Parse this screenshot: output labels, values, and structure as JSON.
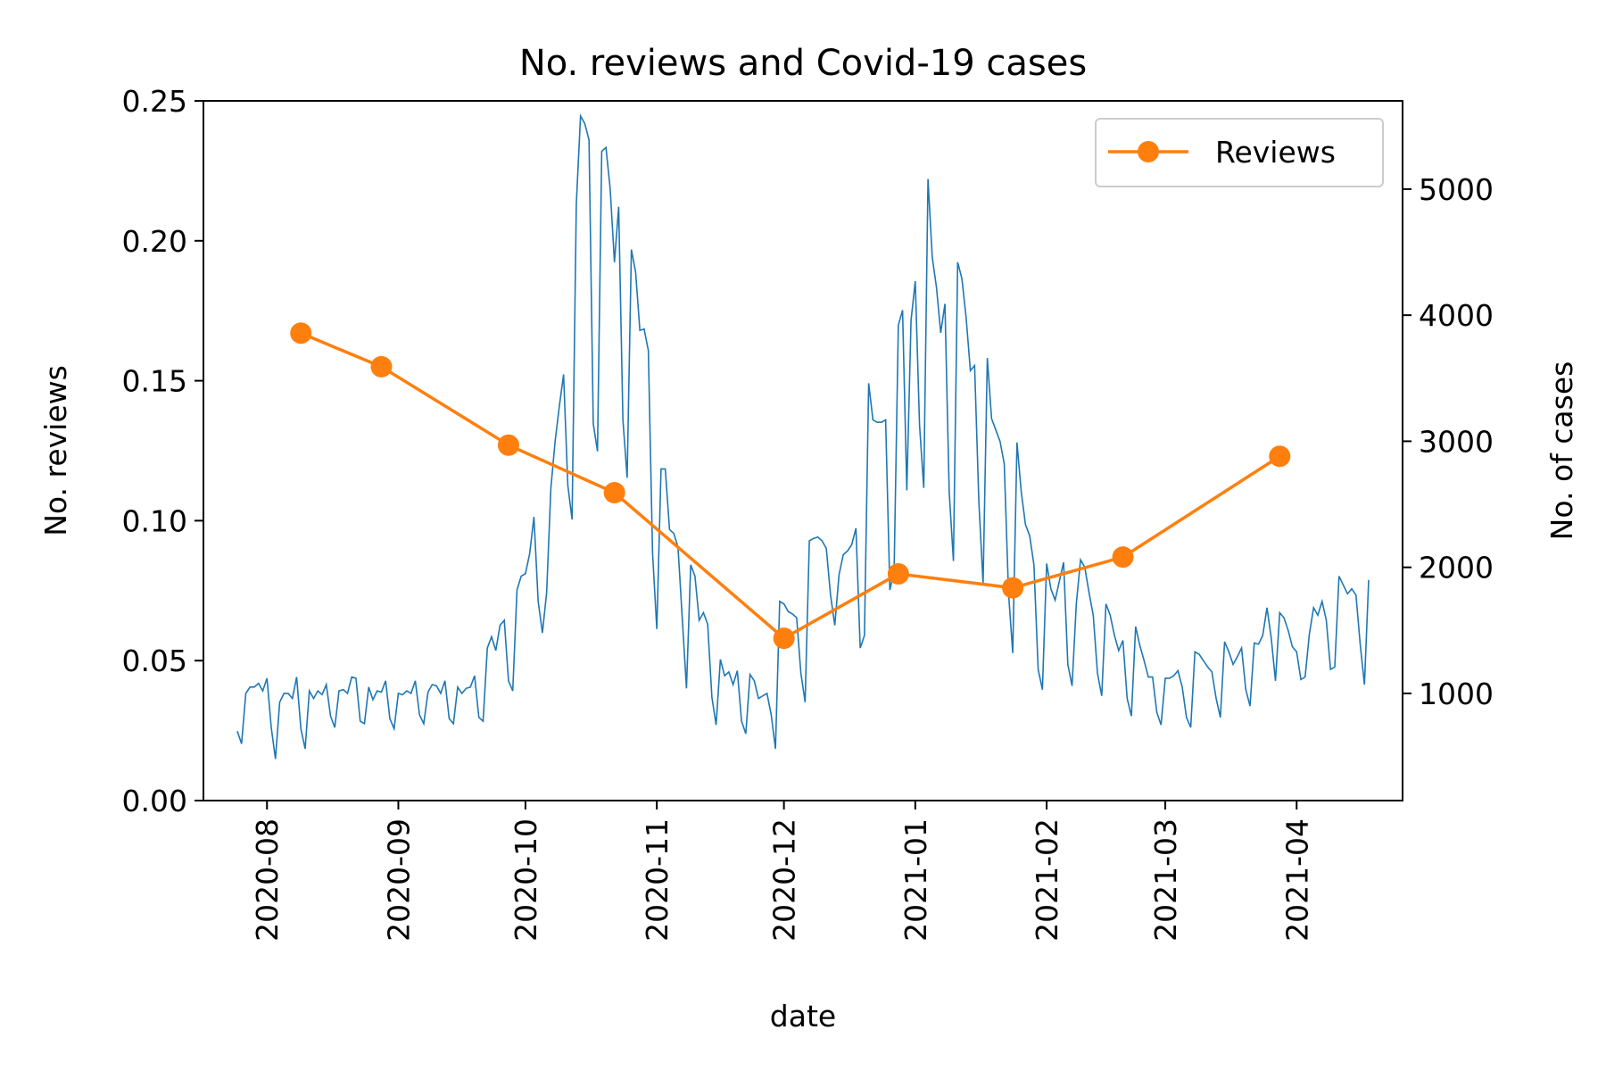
{
  "chart_data": {
    "type": "line",
    "title": "No. reviews and Covid-19 cases",
    "xlabel": "date",
    "ylabel": "No. reviews",
    "y2label": "No. of cases",
    "x_ticks": [
      "2020-08-01",
      "2020-09-01",
      "2020-10-01",
      "2020-11-01",
      "2020-12-01",
      "2021-01-01",
      "2021-02-01",
      "2021-03-01",
      "2021-04-01"
    ],
    "x_tick_labels": [
      "2020-08",
      "2020-09",
      "2020-10",
      "2020-11",
      "2020-12",
      "2021-01",
      "2021-02",
      "2021-03",
      "2021-04"
    ],
    "xlim": [
      "2020-07-17",
      "2021-04-26"
    ],
    "ylim": [
      0,
      0.25
    ],
    "y_ticks": [
      0.0,
      0.05,
      0.1,
      0.15,
      0.2,
      0.25
    ],
    "y_tick_labels": [
      "0.00",
      "0.05",
      "0.10",
      "0.15",
      "0.20",
      "0.25"
    ],
    "y2lim": [
      150,
      5700
    ],
    "y2_ticks": [
      1000,
      2000,
      3000,
      4000,
      5000
    ],
    "y2_tick_labels": [
      "1000",
      "2000",
      "3000",
      "4000",
      "5000"
    ],
    "legend": {
      "position": "top-right",
      "entries": [
        "Reviews"
      ]
    },
    "series": [
      {
        "name": "Reviews",
        "axis": "left",
        "color": "#ff7f0e",
        "marker": "circle",
        "points": [
          {
            "x": "2020-08-09",
            "y": 0.167
          },
          {
            "x": "2020-08-28",
            "y": 0.155
          },
          {
            "x": "2020-09-27",
            "y": 0.127
          },
          {
            "x": "2020-10-22",
            "y": 0.11
          },
          {
            "x": "2020-12-01",
            "y": 0.058
          },
          {
            "x": "2020-12-28",
            "y": 0.081
          },
          {
            "x": "2021-01-24",
            "y": 0.076
          },
          {
            "x": "2021-02-19",
            "y": 0.087
          },
          {
            "x": "2021-03-28",
            "y": 0.123
          }
        ]
      },
      {
        "axis": "right",
        "color": "#1f77b4",
        "start_date": "2020-07-25",
        "daily_values": [
          700,
          600,
          1000,
          1050,
          1050,
          1080,
          1020,
          1120,
          730,
          480,
          930,
          1000,
          1000,
          960,
          1130,
          720,
          560,
          1020,
          960,
          1020,
          990,
          1070,
          820,
          730,
          1020,
          1030,
          1000,
          1130,
          1120,
          780,
          760,
          1050,
          950,
          1020,
          1010,
          1100,
          800,
          720,
          1000,
          990,
          1020,
          1000,
          1100,
          830,
          760,
          1010,
          1070,
          1060,
          1000,
          1100,
          800,
          760,
          1050,
          1000,
          1040,
          1050,
          1140,
          810,
          780,
          1360,
          1450,
          1340,
          1540,
          1580,
          1100,
          1020,
          1820,
          1930,
          1950,
          2110,
          2400,
          1730,
          1480,
          1800,
          2630,
          3000,
          3280,
          3530,
          2650,
          2380,
          4880,
          5580,
          5520,
          5390,
          3140,
          2920,
          5300,
          5330,
          5000,
          4420,
          4860,
          3170,
          2710,
          4520,
          4340,
          3880,
          3890,
          3720,
          2110,
          1510,
          2780,
          2780,
          2300,
          2270,
          2160,
          1600,
          1040,
          2020,
          1930,
          1580,
          1640,
          1550,
          970,
          750,
          1270,
          1140,
          1170,
          1070,
          1180,
          780,
          680,
          1150,
          1100,
          960,
          980,
          1000,
          830,
          560,
          1730,
          1710,
          1650,
          1630,
          1600,
          1160,
          930,
          2210,
          2230,
          2240,
          2210,
          2150,
          1780,
          1540,
          1940,
          2100,
          2130,
          2180,
          2310,
          1360,
          1460,
          3460,
          3170,
          3150,
          3150,
          3170,
          1820,
          1970,
          3920,
          4040,
          2610,
          3960,
          4270,
          3130,
          2630,
          5080,
          4460,
          4220,
          3860,
          4090,
          2600,
          2050,
          4420,
          4290,
          3980,
          3560,
          3600,
          2520,
          1870,
          3660,
          3180,
          3090,
          3000,
          2820,
          1800,
          1320,
          2990,
          2600,
          2340,
          2250,
          2020,
          1190,
          1030,
          2030,
          1830,
          1740,
          1890,
          2040,
          1230,
          1060,
          1710,
          2060,
          2000,
          1800,
          1620,
          1160,
          980,
          1710,
          1620,
          1460,
          1340,
          1420,
          960,
          820,
          1530,
          1380,
          1260,
          1130,
          1130,
          850,
          750,
          1120,
          1120,
          1140,
          1180,
          1050,
          810,
          730,
          1330,
          1310,
          1260,
          1210,
          1170,
          960,
          810,
          1410,
          1330,
          1230,
          1290,
          1360,
          1030,
          900,
          1400,
          1390,
          1460,
          1680,
          1440,
          1100,
          1640,
          1600,
          1500,
          1370,
          1330,
          1110,
          1130,
          1470,
          1680,
          1620,
          1730,
          1580,
          1190,
          1210,
          1930,
          1860,
          1790,
          1830,
          1780,
          1390,
          1070,
          1900
        ]
      }
    ]
  }
}
